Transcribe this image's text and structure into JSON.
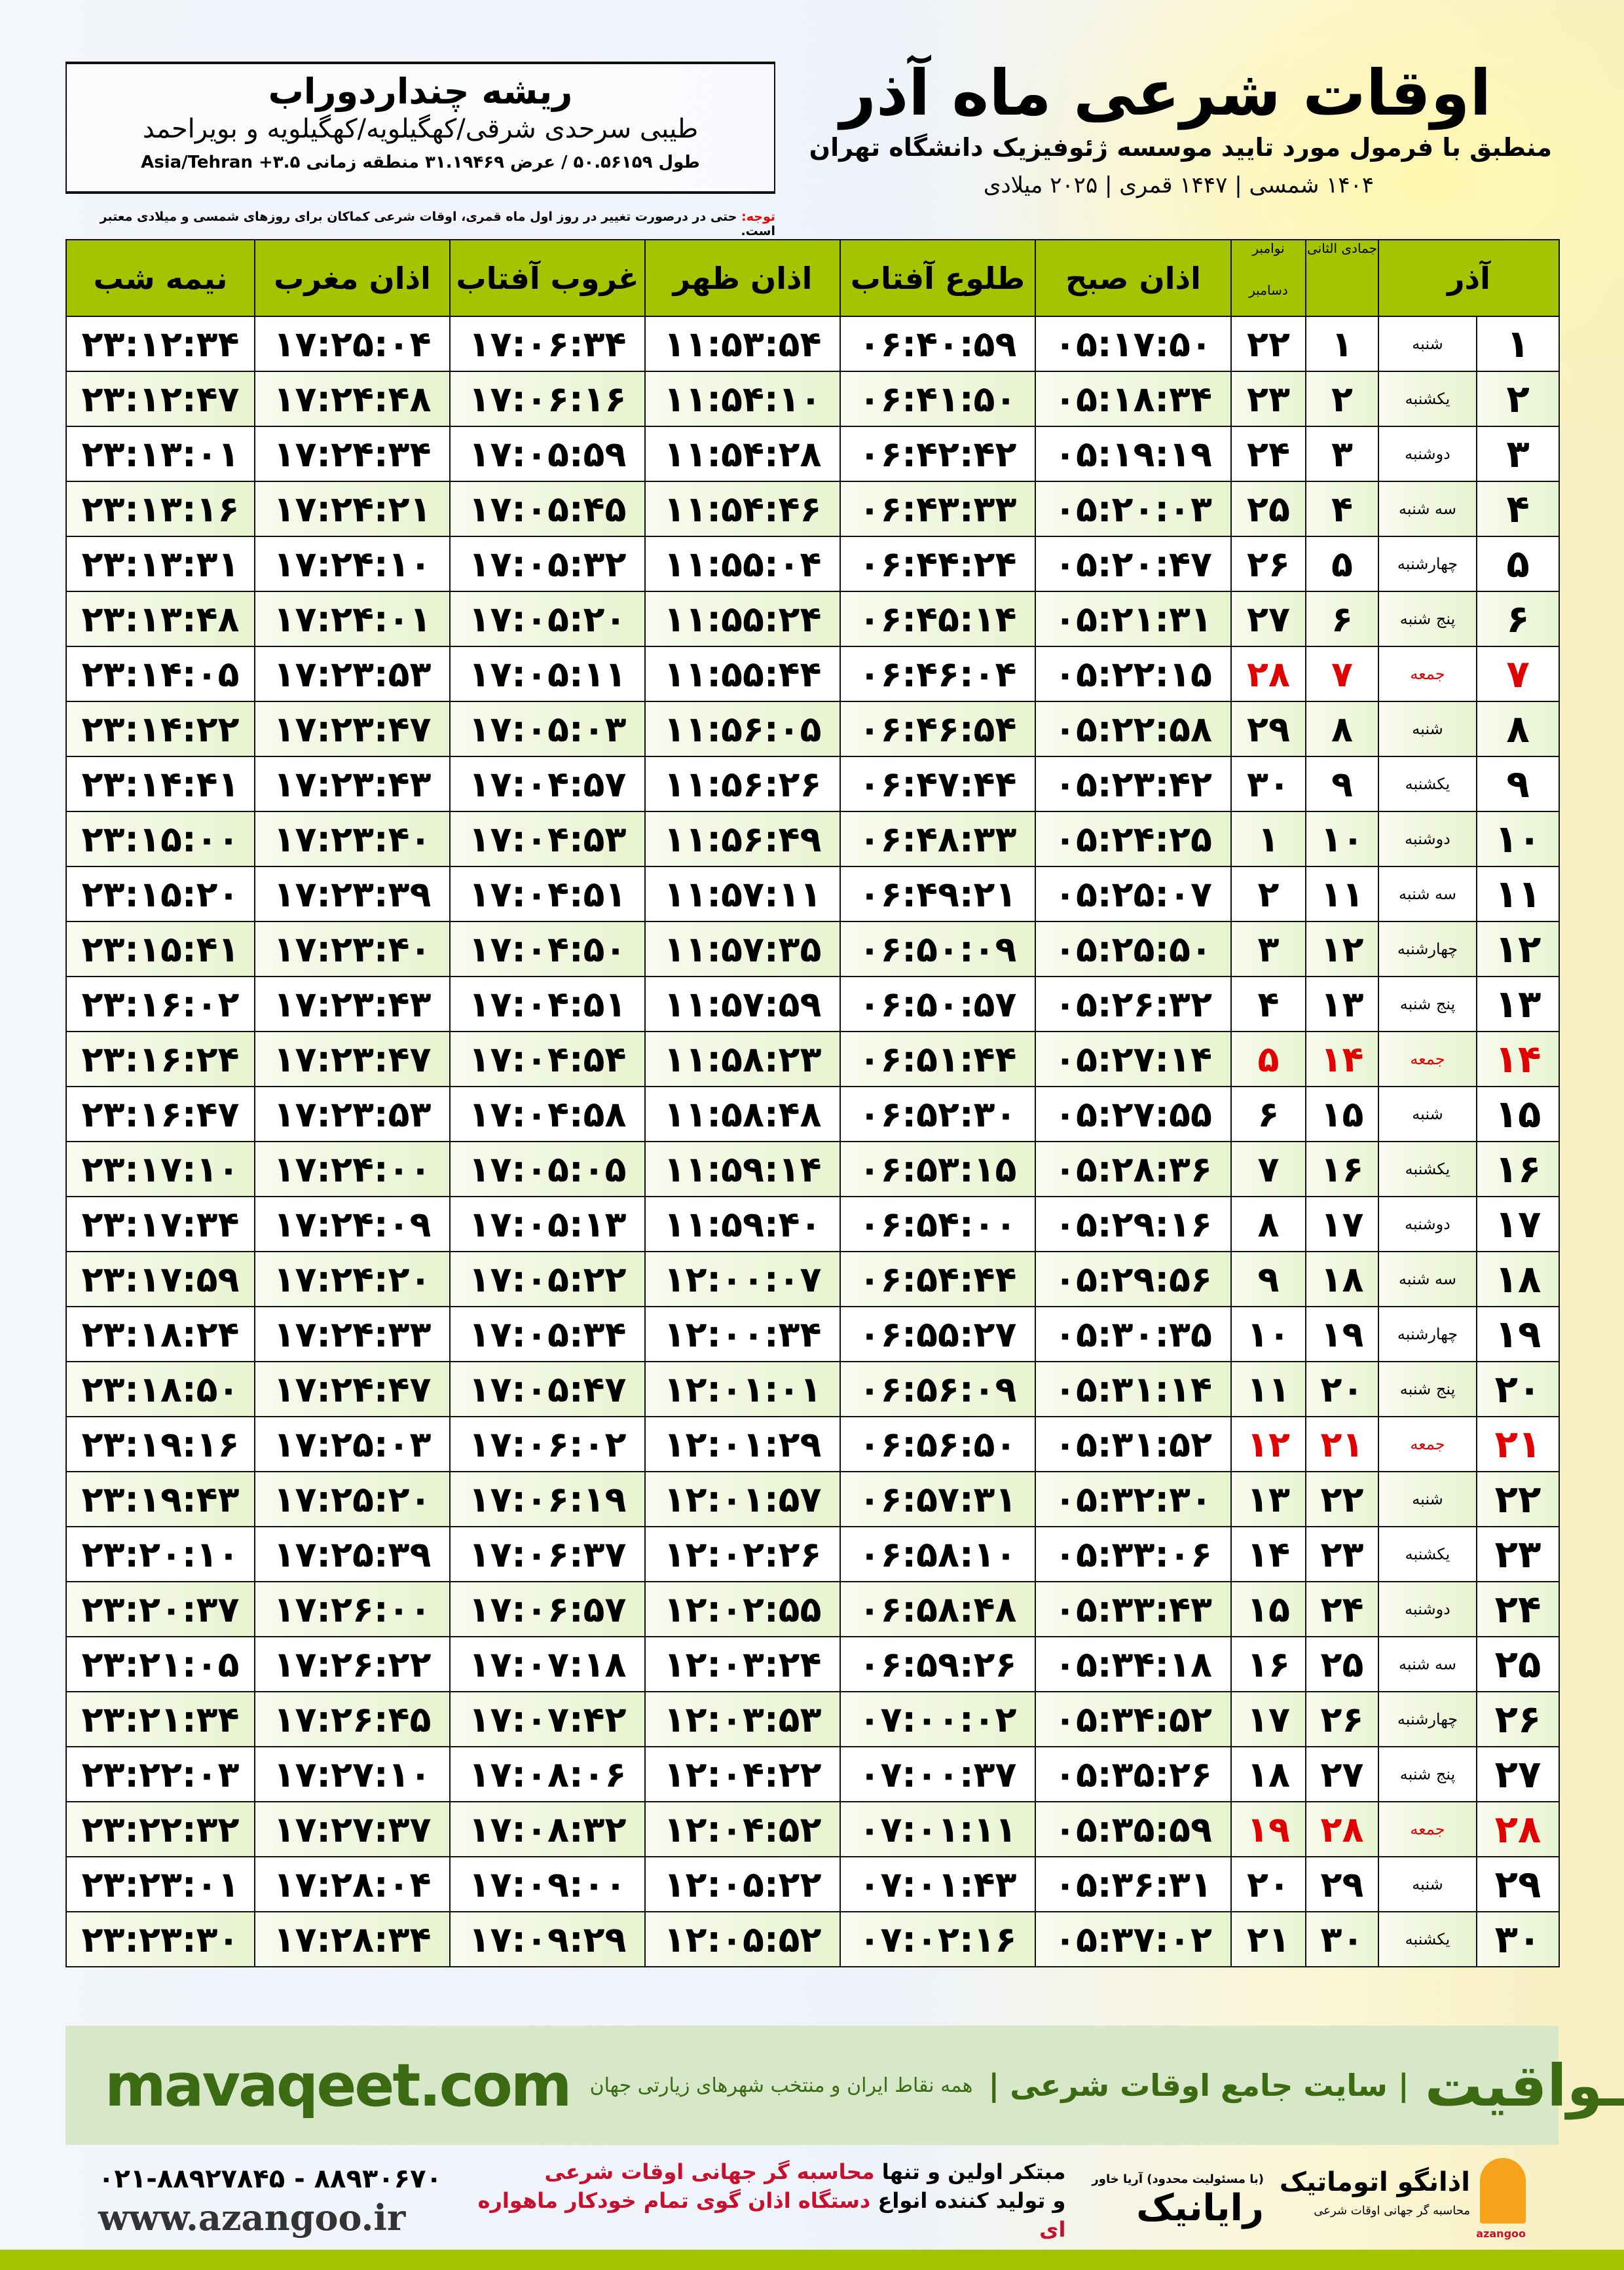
{
  "header": {
    "title": "اوقات شرعی ماه آذر",
    "subtitle": "منطبق با فرمول مورد تایید موسسه ژئوفیزیک دانشگاه تهران",
    "years": "۱۴۰۴ شمسی | ۱۴۴۷ قمری | ۲۰۲۵ میلادی"
  },
  "location": {
    "city": "ریشه چنداردوراب",
    "province": "طیبی سرحدی شرقی/کهگیلویه/کهگیلویه و بویراحمد",
    "coords": "طول ۵۰.۵۶۱۵۹ / عرض ۳۱.۱۹۴۶۹ منطقه زمانی Asia/Tehran +۳.۵"
  },
  "note": {
    "label": "توجه:",
    "text": " حتی در درصورت تغییر در روز اول ماه قمری، اوقات شرعی کماکان برای روزهای شمسی و میلادی معتبر است."
  },
  "colors": {
    "header_green": "#a5c400",
    "friday_red": "#e10000",
    "brand_green": "#3b6a12"
  },
  "table": {
    "columns": {
      "azar": "آذر",
      "hijri": "جمادی الثانی",
      "gregorian_top": "نوامبر",
      "gregorian_bottom": "دسامبر",
      "fajr": "اذان صبح",
      "sunrise": "طلوع آفتاب",
      "dhuhr": "اذان ظهر",
      "sunset": "غروب آفتاب",
      "maghrib": "اذان مغرب",
      "midnight": "نیمه شب"
    },
    "rows": [
      [
        "۱",
        "شنبه",
        "۱",
        "۲۲",
        "۰۵:۱۷:۵۰",
        "۰۶:۴۰:۵۹",
        "۱۱:۵۳:۵۴",
        "۱۷:۰۶:۳۴",
        "۱۷:۲۵:۰۴",
        "۲۳:۱۲:۳۴"
      ],
      [
        "۲",
        "یکشنبه",
        "۲",
        "۲۳",
        "۰۵:۱۸:۳۴",
        "۰۶:۴۱:۵۰",
        "۱۱:۵۴:۱۰",
        "۱۷:۰۶:۱۶",
        "۱۷:۲۴:۴۸",
        "۲۳:۱۲:۴۷"
      ],
      [
        "۳",
        "دوشنبه",
        "۳",
        "۲۴",
        "۰۵:۱۹:۱۹",
        "۰۶:۴۲:۴۲",
        "۱۱:۵۴:۲۸",
        "۱۷:۰۵:۵۹",
        "۱۷:۲۴:۳۴",
        "۲۳:۱۳:۰۱"
      ],
      [
        "۴",
        "سه شنبه",
        "۴",
        "۲۵",
        "۰۵:۲۰:۰۳",
        "۰۶:۴۳:۳۳",
        "۱۱:۵۴:۴۶",
        "۱۷:۰۵:۴۵",
        "۱۷:۲۴:۲۱",
        "۲۳:۱۳:۱۶"
      ],
      [
        "۵",
        "چهارشنبه",
        "۵",
        "۲۶",
        "۰۵:۲۰:۴۷",
        "۰۶:۴۴:۲۴",
        "۱۱:۵۵:۰۴",
        "۱۷:۰۵:۳۲",
        "۱۷:۲۴:۱۰",
        "۲۳:۱۳:۳۱"
      ],
      [
        "۶",
        "پنج شنبه",
        "۶",
        "۲۷",
        "۰۵:۲۱:۳۱",
        "۰۶:۴۵:۱۴",
        "۱۱:۵۵:۲۴",
        "۱۷:۰۵:۲۰",
        "۱۷:۲۴:۰۱",
        "۲۳:۱۳:۴۸"
      ],
      [
        "۷",
        "جمعه",
        "۷",
        "۲۸",
        "۰۵:۲۲:۱۵",
        "۰۶:۴۶:۰۴",
        "۱۱:۵۵:۴۴",
        "۱۷:۰۵:۱۱",
        "۱۷:۲۳:۵۳",
        "۲۳:۱۴:۰۵"
      ],
      [
        "۸",
        "شنبه",
        "۸",
        "۲۹",
        "۰۵:۲۲:۵۸",
        "۰۶:۴۶:۵۴",
        "۱۱:۵۶:۰۵",
        "۱۷:۰۵:۰۳",
        "۱۷:۲۳:۴۷",
        "۲۳:۱۴:۲۲"
      ],
      [
        "۹",
        "یکشنبه",
        "۹",
        "۳۰",
        "۰۵:۲۳:۴۲",
        "۰۶:۴۷:۴۴",
        "۱۱:۵۶:۲۶",
        "۱۷:۰۴:۵۷",
        "۱۷:۲۳:۴۳",
        "۲۳:۱۴:۴۱"
      ],
      [
        "۱۰",
        "دوشنبه",
        "۱۰",
        "۱",
        "۰۵:۲۴:۲۵",
        "۰۶:۴۸:۳۳",
        "۱۱:۵۶:۴۹",
        "۱۷:۰۴:۵۳",
        "۱۷:۲۳:۴۰",
        "۲۳:۱۵:۰۰"
      ],
      [
        "۱۱",
        "سه شنبه",
        "۱۱",
        "۲",
        "۰۵:۲۵:۰۷",
        "۰۶:۴۹:۲۱",
        "۱۱:۵۷:۱۱",
        "۱۷:۰۴:۵۱",
        "۱۷:۲۳:۳۹",
        "۲۳:۱۵:۲۰"
      ],
      [
        "۱۲",
        "چهارشنبه",
        "۱۲",
        "۳",
        "۰۵:۲۵:۵۰",
        "۰۶:۵۰:۰۹",
        "۱۱:۵۷:۳۵",
        "۱۷:۰۴:۵۰",
        "۱۷:۲۳:۴۰",
        "۲۳:۱۵:۴۱"
      ],
      [
        "۱۳",
        "پنج شنبه",
        "۱۳",
        "۴",
        "۰۵:۲۶:۳۲",
        "۰۶:۵۰:۵۷",
        "۱۱:۵۷:۵۹",
        "۱۷:۰۴:۵۱",
        "۱۷:۲۳:۴۳",
        "۲۳:۱۶:۰۲"
      ],
      [
        "۱۴",
        "جمعه",
        "۱۴",
        "۵",
        "۰۵:۲۷:۱۴",
        "۰۶:۵۱:۴۴",
        "۱۱:۵۸:۲۳",
        "۱۷:۰۴:۵۴",
        "۱۷:۲۳:۴۷",
        "۲۳:۱۶:۲۴"
      ],
      [
        "۱۵",
        "شنبه",
        "۱۵",
        "۶",
        "۰۵:۲۷:۵۵",
        "۰۶:۵۲:۳۰",
        "۱۱:۵۸:۴۸",
        "۱۷:۰۴:۵۸",
        "۱۷:۲۳:۵۳",
        "۲۳:۱۶:۴۷"
      ],
      [
        "۱۶",
        "یکشنبه",
        "۱۶",
        "۷",
        "۰۵:۲۸:۳۶",
        "۰۶:۵۳:۱۵",
        "۱۱:۵۹:۱۴",
        "۱۷:۰۵:۰۵",
        "۱۷:۲۴:۰۰",
        "۲۳:۱۷:۱۰"
      ],
      [
        "۱۷",
        "دوشنبه",
        "۱۷",
        "۸",
        "۰۵:۲۹:۱۶",
        "۰۶:۵۴:۰۰",
        "۱۱:۵۹:۴۰",
        "۱۷:۰۵:۱۳",
        "۱۷:۲۴:۰۹",
        "۲۳:۱۷:۳۴"
      ],
      [
        "۱۸",
        "سه شنبه",
        "۱۸",
        "۹",
        "۰۵:۲۹:۵۶",
        "۰۶:۵۴:۴۴",
        "۱۲:۰۰:۰۷",
        "۱۷:۰۵:۲۲",
        "۱۷:۲۴:۲۰",
        "۲۳:۱۷:۵۹"
      ],
      [
        "۱۹",
        "چهارشنبه",
        "۱۹",
        "۱۰",
        "۰۵:۳۰:۳۵",
        "۰۶:۵۵:۲۷",
        "۱۲:۰۰:۳۴",
        "۱۷:۰۵:۳۴",
        "۱۷:۲۴:۳۳",
        "۲۳:۱۸:۲۴"
      ],
      [
        "۲۰",
        "پنج شنبه",
        "۲۰",
        "۱۱",
        "۰۵:۳۱:۱۴",
        "۰۶:۵۶:۰۹",
        "۱۲:۰۱:۰۱",
        "۱۷:۰۵:۴۷",
        "۱۷:۲۴:۴۷",
        "۲۳:۱۸:۵۰"
      ],
      [
        "۲۱",
        "جمعه",
        "۲۱",
        "۱۲",
        "۰۵:۳۱:۵۲",
        "۰۶:۵۶:۵۰",
        "۱۲:۰۱:۲۹",
        "۱۷:۰۶:۰۲",
        "۱۷:۲۵:۰۳",
        "۲۳:۱۹:۱۶"
      ],
      [
        "۲۲",
        "شنبه",
        "۲۲",
        "۱۳",
        "۰۵:۳۲:۳۰",
        "۰۶:۵۷:۳۱",
        "۱۲:۰۱:۵۷",
        "۱۷:۰۶:۱۹",
        "۱۷:۲۵:۲۰",
        "۲۳:۱۹:۴۳"
      ],
      [
        "۲۳",
        "یکشنبه",
        "۲۳",
        "۱۴",
        "۰۵:۳۳:۰۶",
        "۰۶:۵۸:۱۰",
        "۱۲:۰۲:۲۶",
        "۱۷:۰۶:۳۷",
        "۱۷:۲۵:۳۹",
        "۲۳:۲۰:۱۰"
      ],
      [
        "۲۴",
        "دوشنبه",
        "۲۴",
        "۱۵",
        "۰۵:۳۳:۴۳",
        "۰۶:۵۸:۴۸",
        "۱۲:۰۲:۵۵",
        "۱۷:۰۶:۵۷",
        "۱۷:۲۶:۰۰",
        "۲۳:۲۰:۳۷"
      ],
      [
        "۲۵",
        "سه شنبه",
        "۲۵",
        "۱۶",
        "۰۵:۳۴:۱۸",
        "۰۶:۵۹:۲۶",
        "۱۲:۰۳:۲۴",
        "۱۷:۰۷:۱۸",
        "۱۷:۲۶:۲۲",
        "۲۳:۲۱:۰۵"
      ],
      [
        "۲۶",
        "چهارشنبه",
        "۲۶",
        "۱۷",
        "۰۵:۳۴:۵۲",
        "۰۷:۰۰:۰۲",
        "۱۲:۰۳:۵۳",
        "۱۷:۰۷:۴۲",
        "۱۷:۲۶:۴۵",
        "۲۳:۲۱:۳۴"
      ],
      [
        "۲۷",
        "پنج شنبه",
        "۲۷",
        "۱۸",
        "۰۵:۳۵:۲۶",
        "۰۷:۰۰:۳۷",
        "۱۲:۰۴:۲۲",
        "۱۷:۰۸:۰۶",
        "۱۷:۲۷:۱۰",
        "۲۳:۲۲:۰۳"
      ],
      [
        "۲۸",
        "جمعه",
        "۲۸",
        "۱۹",
        "۰۵:۳۵:۵۹",
        "۰۷:۰۱:۱۱",
        "۱۲:۰۴:۵۲",
        "۱۷:۰۸:۳۲",
        "۱۷:۲۷:۳۷",
        "۲۳:۲۲:۳۲"
      ],
      [
        "۲۹",
        "شنبه",
        "۲۹",
        "۲۰",
        "۰۵:۳۶:۳۱",
        "۰۷:۰۱:۴۳",
        "۱۲:۰۵:۲۲",
        "۱۷:۰۹:۰۰",
        "۱۷:۲۸:۰۴",
        "۲۳:۲۳:۰۱"
      ],
      [
        "۳۰",
        "یکشنبه",
        "۳۰",
        "۲۱",
        "۰۵:۳۷:۰۲",
        "۰۷:۰۲:۱۶",
        "۱۲:۰۵:۵۲",
        "۱۷:۰۹:۲۹",
        "۱۷:۲۸:۳۴",
        "۲۳:۲۳:۳۰"
      ]
    ]
  },
  "banner": {
    "site": "mavaqeet.com",
    "brand": "مـواقیت",
    "slogan": "| سایت جامع اوقات شرعی |",
    "slogan_sub": "همه نقاط ایران و منتخب شهرهای زیارتی جهان"
  },
  "footer": {
    "phones": "۰۲۱-۸۸۹۲۷۸۴۵ - ۸۸۹۳۰۶۷۰",
    "web": "www.azangoo.ir",
    "promo_1a": "مبتکر اولین و تنها ",
    "promo_1b": "محاسبه گر جهانی اوقات شرعی",
    "promo_2a": "و تولید کننده انواع ",
    "promo_2b": "دستگاه اذان گوی تمام خودکار ماهواره ای",
    "raianik": "رایانیک",
    "raianik_small": "(با مسئولیت محدود) آریا خاور",
    "azangoo_name": "اذانگو اتوماتیک",
    "azangoo_tag": "محاسبه گر جهانی اوقات شرعی",
    "azangoo_en": "azangoo"
  }
}
